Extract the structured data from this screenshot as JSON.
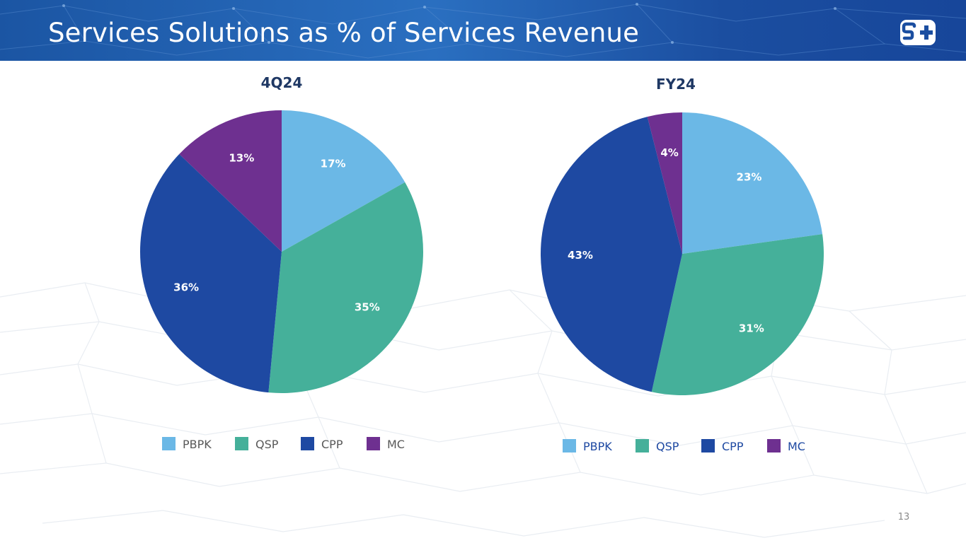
{
  "header": {
    "title": "Services Solutions as % of Services Revenue"
  },
  "logo": {
    "icon": "s-plus-logo-icon",
    "color": "#1b4ea0"
  },
  "colors": {
    "PBPK": "#6bb8e6",
    "QSP": "#45b09a",
    "CPP": "#1e49a2",
    "MC": "#6e3090",
    "title": "#1f3864",
    "legend_left_text": "#595959",
    "legend_right_text": "#1e49a2"
  },
  "chart_data": [
    {
      "type": "pie",
      "title": "4Q24",
      "categories": [
        "PBPK",
        "QSP",
        "CPP",
        "MC"
      ],
      "values": [
        17,
        35,
        36,
        13
      ],
      "labels": [
        "17%",
        "35%",
        "36%",
        "13%"
      ],
      "start": "12 o'clock",
      "direction": "clockwise",
      "legend": {
        "position": "bottom",
        "entries": [
          "PBPK",
          "QSP",
          "CPP",
          "MC"
        ]
      }
    },
    {
      "type": "pie",
      "title": "FY24",
      "categories": [
        "PBPK",
        "QSP",
        "CPP",
        "MC"
      ],
      "values": [
        23,
        31,
        43,
        4
      ],
      "labels": [
        "23%",
        "31%",
        "43%",
        "4%"
      ],
      "start": "12 o'clock",
      "direction": "clockwise",
      "legend": {
        "position": "bottom",
        "entries": [
          "PBPK",
          "QSP",
          "CPP",
          "MC"
        ]
      }
    }
  ],
  "footer": {
    "page_number": "13"
  }
}
